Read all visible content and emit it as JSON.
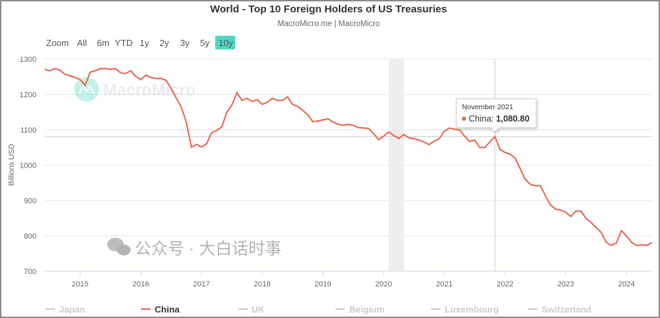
{
  "chart_data": {
    "type": "line",
    "title": "World - Top 10 Foreign Holders of US Treasuries",
    "subtitle": "MacroMicro.me | MacroMicro",
    "ylabel": "Billions USD",
    "xlabel": "",
    "ylim": [
      700,
      1300
    ],
    "yticks": [
      "700",
      "800",
      "900",
      "1000",
      "1100",
      "1200",
      "1300"
    ],
    "xticks": [
      "2015",
      "2016",
      "2017",
      "2018",
      "2019",
      "2020",
      "2021",
      "2022",
      "2023",
      "2024"
    ],
    "grid": true,
    "start_month": "2014-06",
    "frequency": "monthly",
    "series": [
      {
        "name": "China",
        "color": "#e8624a",
        "visible": true,
        "values": [
          1271,
          1267,
          1273,
          1269,
          1257,
          1253,
          1248,
          1242,
          1226,
          1263,
          1267,
          1273,
          1273,
          1271,
          1273,
          1261,
          1259,
          1267,
          1251,
          1242,
          1255,
          1248,
          1245,
          1245,
          1240,
          1217,
          1190,
          1164,
          1121,
          1051,
          1059,
          1051,
          1061,
          1092,
          1098,
          1108,
          1149,
          1170,
          1205,
          1183,
          1189,
          1180,
          1185,
          1172,
          1178,
          1189,
          1183,
          1183,
          1193,
          1172,
          1166,
          1155,
          1143,
          1123,
          1125,
          1128,
          1131,
          1122,
          1116,
          1113,
          1115,
          1113,
          1106,
          1105,
          1104,
          1090,
          1072,
          1082,
          1094,
          1084,
          1075,
          1087,
          1077,
          1075,
          1071,
          1065,
          1058,
          1068,
          1075,
          1096,
          1105,
          1102,
          1100,
          1082,
          1067,
          1071,
          1050,
          1050,
          1066,
          1080.8,
          1044,
          1036,
          1031,
          1020,
          990,
          960,
          946,
          942,
          942,
          913,
          887,
          876,
          873,
          867,
          855,
          870,
          870,
          850,
          838,
          824,
          810,
          782,
          773,
          780,
          815,
          800,
          782,
          773,
          775,
          773,
          781
        ]
      },
      {
        "name": "Japan",
        "visible": false
      },
      {
        "name": "UK",
        "visible": false
      },
      {
        "name": "Belgium",
        "visible": false
      },
      {
        "name": "Luxembourg",
        "visible": false
      },
      {
        "name": "Switzerland",
        "visible": false
      }
    ],
    "legend": [
      "Japan",
      "China",
      "UK",
      "Belgium",
      "Luxembourg",
      "Switzerland"
    ],
    "legend_placement": "bottom",
    "shaded_period": [
      "2020-02",
      "2020-05"
    ],
    "tooltip": {
      "date": "November 2021",
      "series": "China",
      "value": "1,080.80",
      "index": 89,
      "raw": 1080.8
    }
  },
  "range_selector": {
    "label": "Zoom",
    "buttons": [
      "All",
      "6m",
      "YTD",
      "1y",
      "2y",
      "3y",
      "5y",
      "10y"
    ],
    "active": "10y",
    "active_color": "#4fd8c0"
  },
  "watermarks": {
    "logo": "MacroMicro",
    "overlay": "公众号 · 大白话时事"
  }
}
